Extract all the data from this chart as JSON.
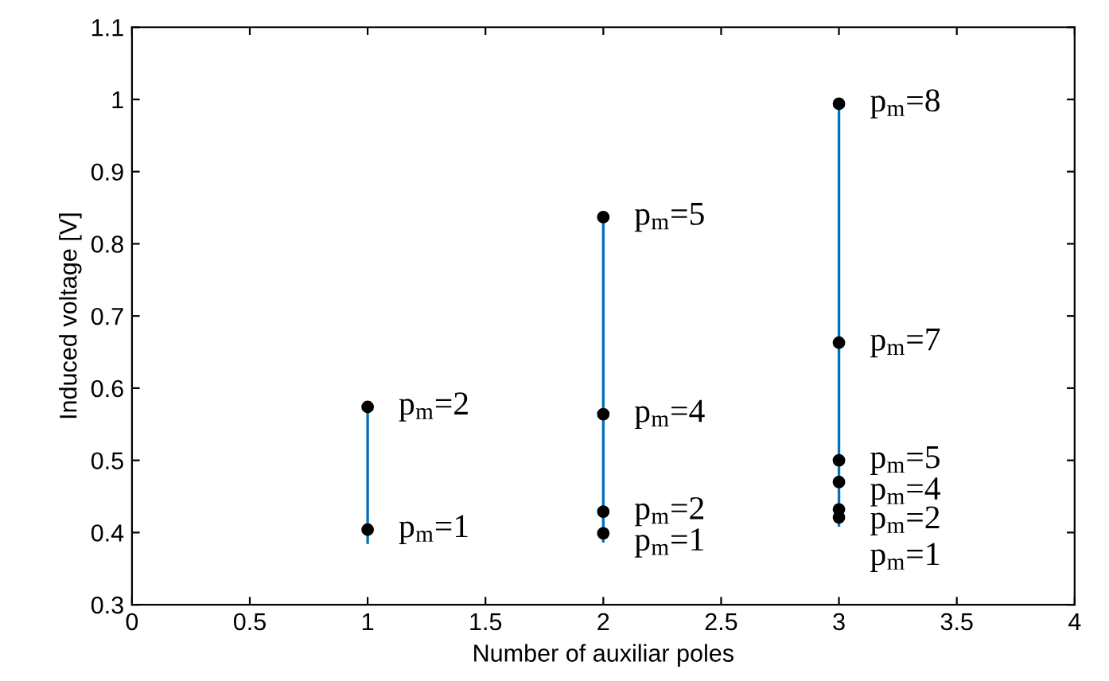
{
  "chart_data": {
    "type": "line",
    "xlabel": "Number of auxiliar poles",
    "ylabel": "Induced voltage [V]",
    "xlim": [
      0,
      4
    ],
    "xticks": [
      0,
      0.5,
      1,
      1.5,
      2,
      2.5,
      3,
      3.5,
      4
    ],
    "ylim": [
      0.3,
      1.1
    ],
    "yticks": [
      0.3,
      0.4,
      0.5,
      0.6,
      0.7,
      0.8,
      0.9,
      1,
      1.1
    ],
    "grid": false,
    "legend": false,
    "series": [
      {
        "color": "#0072bd",
        "x": [
          1,
          1
        ],
        "values": [
          0.386,
          0.574
        ],
        "marker": "none"
      },
      {
        "color": "#0072bd",
        "x": [
          2,
          2
        ],
        "values": [
          0.388,
          0.837
        ],
        "marker": "none"
      },
      {
        "color": "#0072bd",
        "x": [
          3,
          3
        ],
        "values": [
          0.41,
          0.99
        ],
        "marker": "none"
      },
      {
        "type": "scatter",
        "color": "#000000",
        "marker": "circle",
        "x": [
          1,
          1,
          2,
          2,
          2,
          2,
          3,
          3,
          3,
          3,
          3,
          3
        ],
        "values": [
          0.404,
          0.574,
          0.399,
          0.429,
          0.564,
          0.837,
          0.421,
          0.432,
          0.47,
          0.5,
          0.663,
          0.994
        ]
      }
    ],
    "annotations": [
      {
        "text": "p$_{m}$=1",
        "x": 1,
        "y": 0.404
      },
      {
        "text": "p$_{m}$=2",
        "x": 1,
        "y": 0.574
      },
      {
        "text": "p$_{m}$=1",
        "x": 2,
        "y": 0.399
      },
      {
        "text": "p$_{m}$=2",
        "x": 2,
        "y": 0.429
      },
      {
        "text": "p$_{m}$=4",
        "x": 2,
        "y": 0.564
      },
      {
        "text": "p$_{m}$=5",
        "x": 2,
        "y": 0.837
      },
      {
        "text": "p$_{m}$=1",
        "x": 3,
        "y": 0.421
      },
      {
        "text": "p$_{m}$=2",
        "x": 3,
        "y": 0.432
      },
      {
        "text": "p$_{m}$=4",
        "x": 3,
        "y": 0.47
      },
      {
        "text": "p$_{m}$=5",
        "x": 3,
        "y": 0.5
      },
      {
        "text": "p$_{m}$=7",
        "x": 3,
        "y": 0.663
      },
      {
        "text": "p$_{m}$=8",
        "x": 3,
        "y": 0.994
      }
    ]
  }
}
